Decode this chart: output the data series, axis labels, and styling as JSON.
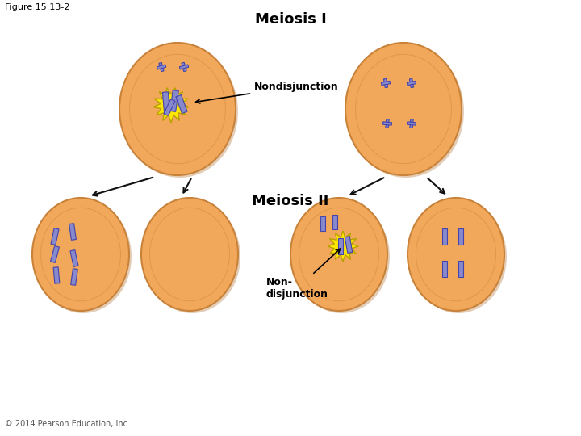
{
  "figure_label": "Figure 15.13-2",
  "meiosis_I_label": "Meiosis I",
  "meiosis_II_label": "Meiosis II",
  "nondisjunction_label_I": "Nondisjunction",
  "nondisjunction_label_II": "Non-\ndisjunction",
  "copyright": "© 2014 Pearson Education, Inc.",
  "bg_color": "#ffffff",
  "cell_fill": "#F2A85A",
  "cell_edge": "#C8823A",
  "cell_shadow": "#B07030",
  "chromosome_color": "#8888CC",
  "chromosome_edge": "#4444AA",
  "burst_color": "#FFE800",
  "burst_edge": "#B8A000",
  "figure_label_fontsize": 8,
  "copyright_fontsize": 7,
  "arrow_color": "#111111"
}
